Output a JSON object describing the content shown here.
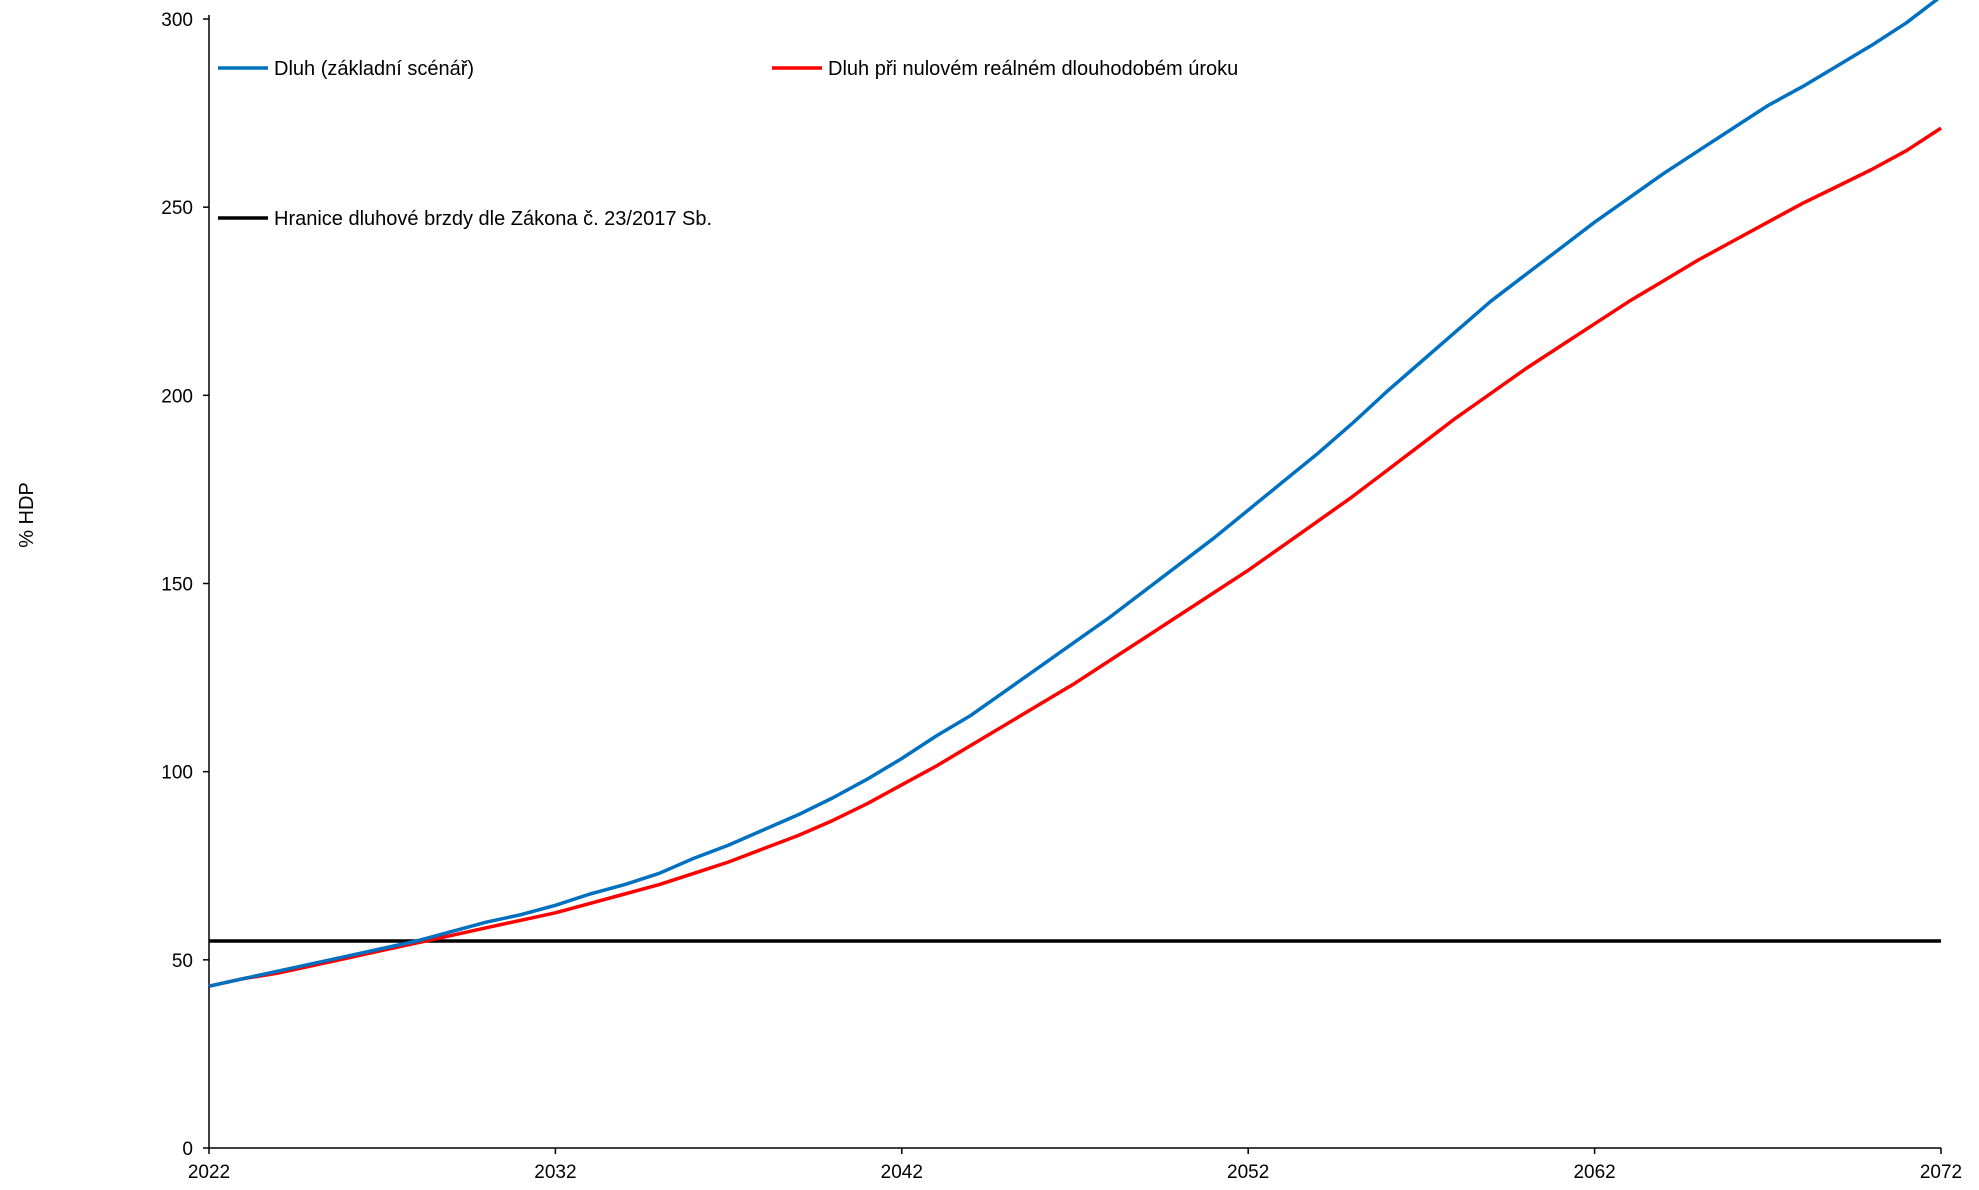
{
  "chart_data": {
    "type": "line",
    "ylabel": "% HDP",
    "xlabel": "",
    "xlim": [
      2022,
      2072
    ],
    "ylim": [
      0,
      300
    ],
    "x_ticks": [
      "2022",
      "2032",
      "2042",
      "2052",
      "2062",
      "2072"
    ],
    "y_ticks": [
      "0",
      "50",
      "100",
      "150",
      "200",
      "250",
      "300"
    ],
    "grid": false,
    "x": [
      2022,
      2023,
      2024,
      2025,
      2026,
      2027,
      2028,
      2029,
      2030,
      2031,
      2032,
      2033,
      2034,
      2035,
      2036,
      2037,
      2038,
      2039,
      2040,
      2041,
      2042,
      2043,
      2044,
      2045,
      2046,
      2047,
      2048,
      2049,
      2050,
      2051,
      2052,
      2053,
      2054,
      2055,
      2056,
      2057,
      2058,
      2059,
      2060,
      2061,
      2062,
      2063,
      2064,
      2065,
      2066,
      2067,
      2068,
      2069,
      2070,
      2071,
      2072
    ],
    "series": [
      {
        "name": "Dluh (základní scénář)",
        "color": "#0070c0",
        "values": [
          43,
          45,
          47,
          49,
          51,
          53,
          55,
          57.5,
          60,
          62,
          64.5,
          67.5,
          70,
          73,
          77,
          80.5,
          84.5,
          88.5,
          93,
          98,
          103.5,
          109.5,
          115,
          121.5,
          128,
          134.5,
          141,
          148,
          155,
          162,
          169.5,
          177,
          184.5,
          192.5,
          201,
          209,
          217,
          225,
          232,
          239,
          246,
          252.5,
          259,
          265,
          271,
          277,
          282,
          287.5,
          293,
          299,
          306
        ]
      },
      {
        "name": "Dluh při nulovém reálném dlouhodobém úroku",
        "color": "#ff0000",
        "values": [
          43,
          45,
          46.5,
          48.5,
          50.5,
          52.5,
          54.5,
          56.5,
          58.5,
          60.5,
          62.5,
          65,
          67.5,
          70,
          73,
          76,
          79.5,
          83,
          87,
          91.5,
          96.5,
          101.5,
          107,
          112.5,
          118,
          123.5,
          129.5,
          135.5,
          141.5,
          147.5,
          153.5,
          160,
          166.5,
          173,
          180,
          187,
          194,
          200.5,
          207,
          213,
          219,
          225,
          230.5,
          236,
          241,
          246,
          251,
          255.5,
          260,
          265,
          271
        ]
      },
      {
        "name": "Hranice dluhové brzdy dle Zákona č. 23/2017 Sb.",
        "color": "#000000",
        "values": [
          55,
          55,
          55,
          55,
          55,
          55,
          55,
          55,
          55,
          55,
          55,
          55,
          55,
          55,
          55,
          55,
          55,
          55,
          55,
          55,
          55,
          55,
          55,
          55,
          55,
          55,
          55,
          55,
          55,
          55,
          55,
          55,
          55,
          55,
          55,
          55,
          55,
          55,
          55,
          55,
          55,
          55,
          55,
          55,
          55,
          55,
          55,
          55,
          55,
          55,
          55
        ]
      }
    ],
    "legend_position": "top-left, inside plot"
  }
}
